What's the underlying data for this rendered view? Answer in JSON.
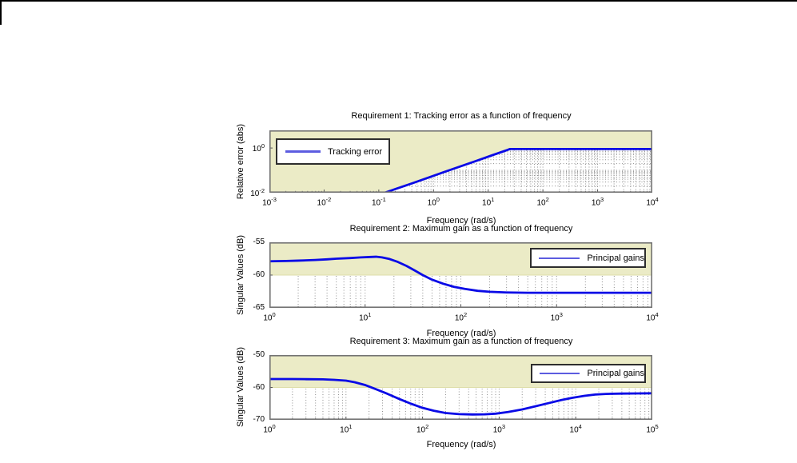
{
  "window": {
    "frame_color": "#000000",
    "background": "#ffffff"
  },
  "figure": {
    "background": "#ffffff",
    "shade_color": "#EBEBC6",
    "shade_edge_color": "#DDDDA8",
    "curve_color": "#0A0AE6",
    "legend_sample_color": "#5C5CE0",
    "grid_color": "#8F8F8F",
    "axis_color": "#737373",
    "tick_color": "#555555"
  },
  "chart_data": [
    {
      "type": "line",
      "title": "Requirement 1: Tracking error as a function of frequency",
      "xlabel": "Frequency (rad/s)",
      "ylabel": "Relative error (abs)",
      "xscale": "log",
      "yscale": "log",
      "x_min_exp": -3,
      "x_max_exp": 4,
      "y_min": -2,
      "y_max": 0.79,
      "x_tick_exps": [
        -3,
        -2,
        -1,
        0,
        1,
        2,
        3,
        4
      ],
      "y_ticks": [
        0,
        -2
      ],
      "y_tick_format": "pow",
      "grid": "dotted log minor grid, white region only",
      "legend_label": "Tracking error",
      "legend_position": "top-left",
      "shade": {
        "type": "above_curve",
        "meaning": "requirement bound region"
      },
      "series": [
        {
          "name": "Tracking error",
          "points": [
            [
              0.13,
              0.01
            ],
            [
              0.2,
              0.0145
            ],
            [
              0.4,
              0.026
            ],
            [
              0.8,
              0.047
            ],
            [
              1.5,
              0.081
            ],
            [
              3,
              0.146
            ],
            [
              6,
              0.264
            ],
            [
              12,
              0.48
            ],
            [
              20,
              0.74
            ],
            [
              25,
              0.9
            ],
            [
              10000,
              0.9
            ]
          ]
        }
      ]
    },
    {
      "type": "line",
      "title": "Requirement 2: Maximum gain as a function of frequency",
      "xlabel": "Frequency (rad/s)",
      "ylabel": "Singular Values (dB)",
      "xscale": "log",
      "yscale": "linear",
      "x_min_exp": 0,
      "x_max_exp": 4,
      "y_min": -65,
      "y_max": -55,
      "x_tick_exps": [
        0,
        1,
        2,
        3,
        4
      ],
      "y_ticks": [
        -55,
        -60,
        -65
      ],
      "y_tick_format": "number",
      "grid": "dotted log minor grid, white region only",
      "legend_label": "Principal gains",
      "legend_position": "top-right",
      "shade": {
        "type": "above_value",
        "value": -60,
        "meaning": "requirement bound region"
      },
      "series": [
        {
          "name": "Principal gains",
          "points": [
            [
              1,
              -57.9
            ],
            [
              1.5,
              -57.85
            ],
            [
              2,
              -57.8
            ],
            [
              3,
              -57.7
            ],
            [
              4,
              -57.6
            ],
            [
              5,
              -57.5
            ],
            [
              7,
              -57.4
            ],
            [
              9,
              -57.3
            ],
            [
              11,
              -57.25
            ],
            [
              13,
              -57.2
            ],
            [
              15,
              -57.3
            ],
            [
              18,
              -57.55
            ],
            [
              22,
              -58.0
            ],
            [
              27,
              -58.6
            ],
            [
              33,
              -59.3
            ],
            [
              40,
              -60.0
            ],
            [
              50,
              -60.7
            ],
            [
              65,
              -61.3
            ],
            [
              85,
              -61.8
            ],
            [
              110,
              -62.1
            ],
            [
              150,
              -62.4
            ],
            [
              200,
              -62.55
            ],
            [
              300,
              -62.65
            ],
            [
              500,
              -62.7
            ],
            [
              1000,
              -62.7
            ],
            [
              10000,
              -62.7
            ]
          ]
        }
      ]
    },
    {
      "type": "line",
      "title": "Requirement 3: Maximum gain as a function of frequency",
      "xlabel": "Frequency (rad/s)",
      "ylabel": "Singular Values (dB)",
      "xscale": "log",
      "yscale": "linear",
      "x_min_exp": 0,
      "x_max_exp": 5,
      "y_min": -70,
      "y_max": -50,
      "x_tick_exps": [
        0,
        1,
        2,
        3,
        4,
        5
      ],
      "y_ticks": [
        -50,
        -60,
        -70
      ],
      "y_tick_format": "number",
      "grid": "dotted log minor grid, white region only",
      "legend_label": "Principal gains",
      "legend_position": "top-right",
      "shade": {
        "type": "above_value",
        "value": -60,
        "meaning": "requirement bound region"
      },
      "series": [
        {
          "name": "Principal gains",
          "points": [
            [
              1,
              -57.4
            ],
            [
              2,
              -57.4
            ],
            [
              3,
              -57.45
            ],
            [
              5,
              -57.5
            ],
            [
              7,
              -57.65
            ],
            [
              10,
              -57.9
            ],
            [
              13,
              -58.4
            ],
            [
              18,
              -59.3
            ],
            [
              25,
              -60.6
            ],
            [
              35,
              -62.0
            ],
            [
              50,
              -63.6
            ],
            [
              70,
              -65.0
            ],
            [
              100,
              -66.3
            ],
            [
              140,
              -67.2
            ],
            [
              200,
              -67.9
            ],
            [
              300,
              -68.25
            ],
            [
              450,
              -68.35
            ],
            [
              650,
              -68.3
            ],
            [
              900,
              -68.1
            ],
            [
              1300,
              -67.6
            ],
            [
              2000,
              -66.8
            ],
            [
              3000,
              -65.8
            ],
            [
              4500,
              -64.8
            ],
            [
              6500,
              -63.9
            ],
            [
              9000,
              -63.2
            ],
            [
              13000,
              -62.6
            ],
            [
              18000,
              -62.2
            ],
            [
              25000,
              -62.0
            ],
            [
              40000,
              -61.9
            ],
            [
              65000,
              -61.85
            ],
            [
              100000,
              -61.8
            ]
          ]
        }
      ]
    }
  ]
}
